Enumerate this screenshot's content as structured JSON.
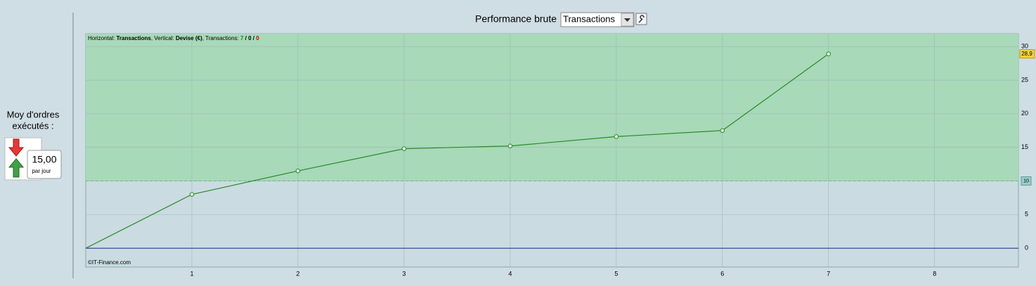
{
  "sidebar": {
    "caption_line1": "Moy d'ordres",
    "caption_line2": "exécutés :",
    "value": "15,00",
    "unit": "par jour"
  },
  "header": {
    "title": "Performance brute",
    "select": "Transactions"
  },
  "chart_data": {
    "type": "line",
    "info_parts": [
      "Horizontal: ",
      "Transactions",
      ", Vertical: ",
      "Devise (€)",
      ", Transactions: ",
      "7",
      " / ",
      "0",
      " / ",
      "0"
    ],
    "x": [
      0,
      1,
      2,
      3,
      4,
      5,
      6,
      7
    ],
    "values": [
      0,
      8,
      11.5,
      14.8,
      15.2,
      16.6,
      17.5,
      28.9
    ],
    "color": "#2a8a2a",
    "xlim": [
      0,
      8.79
    ],
    "xticks": [
      1,
      2,
      3,
      4,
      5,
      6,
      7,
      8
    ],
    "ylim": [
      -2.8,
      31.9
    ],
    "yticks": [
      0,
      5,
      10,
      15,
      20,
      25,
      30
    ],
    "grid": true,
    "threshold": {
      "value": 10,
      "label": "10"
    },
    "last_value": {
      "value": 28.9,
      "label": "28,9"
    },
    "credit": "©IT-Finance.com"
  }
}
